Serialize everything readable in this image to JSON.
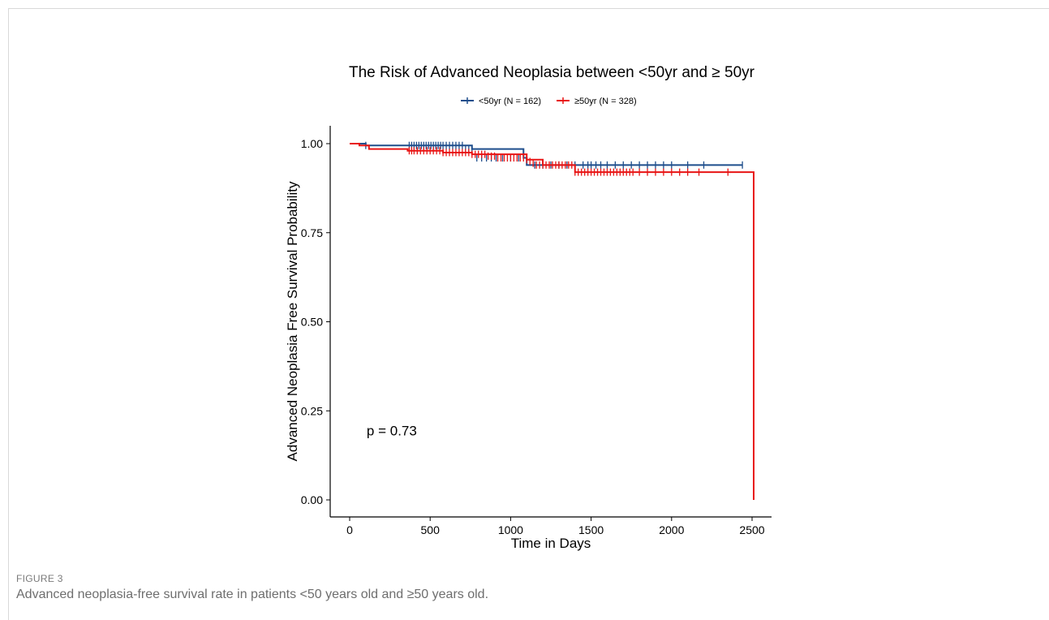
{
  "figure": {
    "label": "FIGURE 3",
    "caption": "Advanced neoplasia-free survival rate in patients <50 years old and ≥50 years old."
  },
  "chart_data": {
    "type": "line",
    "title": "The Risk of Advanced Neoplasia between <50yr and ≥ 50yr",
    "xlabel": "Time in Days",
    "ylabel": "Advanced Neoplasia Free Survival Probability",
    "xlim": [
      0,
      2500
    ],
    "ylim": [
      0,
      1
    ],
    "xticks": [
      0,
      500,
      1000,
      1500,
      2000,
      2500
    ],
    "yticks": [
      0.0,
      0.25,
      0.5,
      0.75,
      1.0
    ],
    "xtick_labels": [
      "0",
      "500",
      "1000",
      "1500",
      "2000",
      "2500"
    ],
    "ytick_labels": [
      "0.00",
      "0.25",
      "0.50",
      "0.75",
      "1.00"
    ],
    "grid": false,
    "legend_position": "top",
    "annotation": "p = 0.73",
    "annotation_position": [
      50,
      0.195
    ],
    "series": [
      {
        "name": "<50yr (N = 162)",
        "color": "#1f4e8c",
        "x": [
          0,
          100,
          700,
          760,
          1080,
          1100,
          2440
        ],
        "y": [
          1.0,
          0.995,
          0.995,
          0.985,
          0.96,
          0.94,
          0.94
        ],
        "censor_x": [
          100,
          370,
          385,
          400,
          415,
          430,
          445,
          460,
          475,
          490,
          505,
          520,
          535,
          550,
          565,
          580,
          600,
          620,
          640,
          660,
          680,
          700,
          720,
          740,
          760,
          790,
          820,
          850,
          880,
          910,
          950,
          1000,
          1050,
          1150,
          1200,
          1250,
          1300,
          1350,
          1400,
          1450,
          1480,
          1500,
          1530,
          1560,
          1600,
          1650,
          1700,
          1750,
          1800,
          1850,
          1900,
          1950,
          2000,
          2100,
          2200,
          2440
        ],
        "censor_y": [
          0.995,
          0.995,
          0.995,
          0.995,
          0.995,
          0.995,
          0.995,
          0.995,
          0.995,
          0.995,
          0.995,
          0.995,
          0.995,
          0.995,
          0.995,
          0.995,
          0.995,
          0.995,
          0.995,
          0.995,
          0.995,
          0.995,
          0.985,
          0.985,
          0.985,
          0.96,
          0.96,
          0.96,
          0.96,
          0.96,
          0.96,
          0.96,
          0.96,
          0.94,
          0.94,
          0.94,
          0.94,
          0.94,
          0.94,
          0.94,
          0.94,
          0.94,
          0.94,
          0.94,
          0.94,
          0.94,
          0.94,
          0.94,
          0.94,
          0.94,
          0.94,
          0.94,
          0.94,
          0.94,
          0.94,
          0.94
        ]
      },
      {
        "name": "≥50yr (N = 328)",
        "color": "#e81414",
        "x": [
          0,
          60,
          120,
          360,
          580,
          760,
          1100,
          1200,
          1400,
          2510,
          2510
        ],
        "y": [
          1.0,
          0.995,
          0.985,
          0.98,
          0.975,
          0.97,
          0.955,
          0.94,
          0.92,
          0.92,
          0.0
        ],
        "censor_x": [
          370,
          385,
          400,
          420,
          440,
          460,
          480,
          500,
          520,
          540,
          560,
          580,
          600,
          620,
          640,
          660,
          680,
          700,
          720,
          740,
          760,
          780,
          800,
          820,
          840,
          860,
          880,
          900,
          920,
          940,
          960,
          980,
          1000,
          1020,
          1040,
          1060,
          1080,
          1100,
          1120,
          1140,
          1160,
          1180,
          1200,
          1220,
          1240,
          1260,
          1280,
          1300,
          1320,
          1340,
          1360,
          1380,
          1400,
          1420,
          1440,
          1460,
          1480,
          1500,
          1520,
          1540,
          1560,
          1580,
          1600,
          1620,
          1640,
          1660,
          1680,
          1700,
          1720,
          1740,
          1760,
          1800,
          1850,
          1900,
          1950,
          2000,
          2050,
          2100,
          2170,
          2350
        ],
        "censor_y": [
          0.98,
          0.98,
          0.98,
          0.98,
          0.98,
          0.98,
          0.98,
          0.98,
          0.98,
          0.98,
          0.98,
          0.975,
          0.975,
          0.975,
          0.975,
          0.975,
          0.975,
          0.975,
          0.975,
          0.975,
          0.97,
          0.97,
          0.97,
          0.97,
          0.97,
          0.965,
          0.965,
          0.965,
          0.96,
          0.96,
          0.96,
          0.96,
          0.96,
          0.96,
          0.96,
          0.96,
          0.96,
          0.955,
          0.95,
          0.945,
          0.94,
          0.94,
          0.94,
          0.94,
          0.94,
          0.94,
          0.94,
          0.94,
          0.94,
          0.94,
          0.94,
          0.94,
          0.92,
          0.92,
          0.92,
          0.92,
          0.92,
          0.92,
          0.92,
          0.92,
          0.92,
          0.92,
          0.92,
          0.92,
          0.92,
          0.92,
          0.92,
          0.92,
          0.92,
          0.92,
          0.92,
          0.92,
          0.92,
          0.92,
          0.92,
          0.92,
          0.92,
          0.92,
          0.92,
          0.92
        ]
      }
    ]
  }
}
